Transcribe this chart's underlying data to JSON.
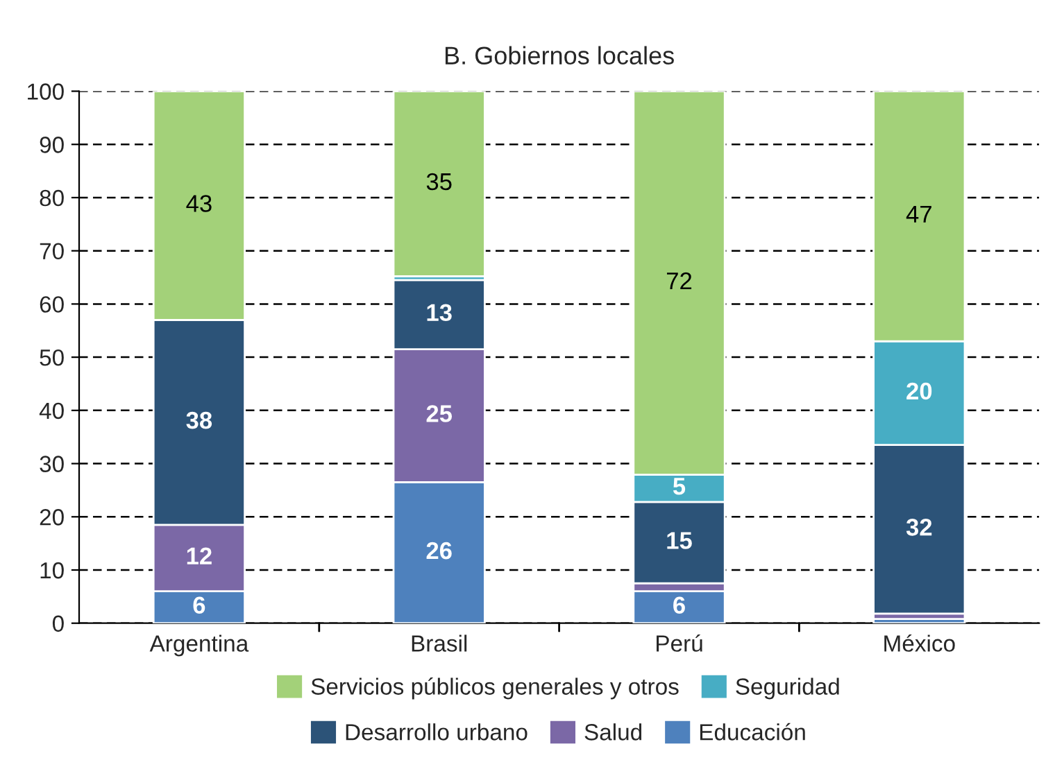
{
  "chart_data": {
    "type": "bar",
    "title": "B. Gobiernos locales",
    "stacked": true,
    "categories": [
      "Argentina",
      "Brasil",
      "Perú",
      "México"
    ],
    "series": [
      {
        "name": "Educación",
        "color": "#4e81bd",
        "values": [
          6,
          26.5,
          6,
          0.8
        ],
        "value_labels": [
          "6",
          "26",
          "6",
          null
        ]
      },
      {
        "name": "Salud",
        "color": "#7b68a6",
        "values": [
          12.5,
          25,
          1.5,
          1
        ],
        "value_labels": [
          "12",
          "25",
          null,
          null
        ]
      },
      {
        "name": "Desarrollo urbano",
        "color": "#2c5378",
        "values": [
          38.5,
          13,
          15.3,
          31.7
        ],
        "value_labels": [
          "38",
          "13",
          "15",
          "32"
        ]
      },
      {
        "name": "Seguridad",
        "color": "#47adc4",
        "values": [
          0,
          0.7,
          5.1,
          19.5
        ],
        "value_labels": [
          null,
          null,
          "5",
          "20"
        ]
      },
      {
        "name": "Servicios públicos generales y otros",
        "color": "#a3d179",
        "values": [
          43,
          34.8,
          72.1,
          47
        ],
        "value_labels": [
          "43",
          "35",
          "72",
          "47"
        ]
      }
    ],
    "ylim": [
      0,
      100
    ],
    "yticks": [
      0,
      10,
      20,
      30,
      40,
      50,
      60,
      70,
      80,
      90,
      100
    ],
    "grid": "y",
    "legend": "bottom"
  }
}
